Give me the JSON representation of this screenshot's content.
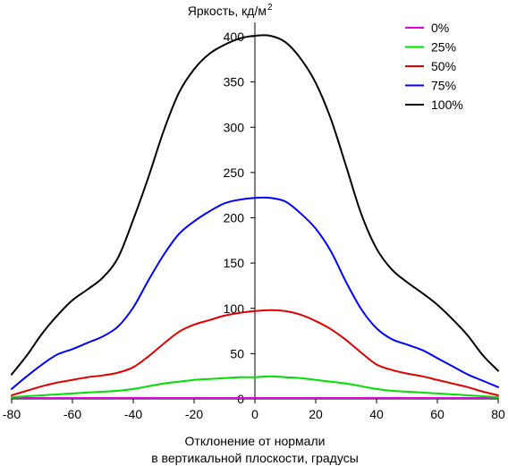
{
  "chart_data": {
    "type": "line",
    "ylabel": "Яркость, кд/м",
    "ylabel_sup": "2",
    "xlabel_line1": "Отклонение от нормали",
    "xlabel_line2": "в вертикальной плоскости, градусы",
    "xlim": [
      -80,
      80
    ],
    "ylim": [
      0,
      420
    ],
    "xticks": [
      -80,
      -60,
      -40,
      -20,
      0,
      20,
      40,
      60,
      80
    ],
    "yticks": [
      0,
      50,
      100,
      150,
      200,
      250,
      300,
      350,
      400
    ],
    "legend_position": "top-right",
    "x": [
      -80,
      -75,
      -70,
      -65,
      -60,
      -55,
      -50,
      -45,
      -40,
      -35,
      -30,
      -25,
      -20,
      -15,
      -10,
      -5,
      0,
      5,
      10,
      15,
      20,
      25,
      30,
      35,
      40,
      45,
      50,
      55,
      60,
      65,
      70,
      75,
      80
    ],
    "series": [
      {
        "name": "0%",
        "color": "#e000e0",
        "values": [
          1,
          1,
          1,
          1,
          1,
          1,
          1,
          1,
          1,
          1,
          1,
          1,
          1,
          1,
          1,
          1,
          1,
          1,
          1,
          1,
          1,
          1,
          1,
          1,
          1,
          1,
          1,
          1,
          1,
          1,
          1,
          1,
          1
        ]
      },
      {
        "name": "25%",
        "color": "#00e000",
        "values": [
          2,
          3,
          4,
          5,
          6,
          7,
          8,
          9,
          11,
          14,
          17,
          19,
          21,
          22,
          23,
          24,
          24,
          25,
          24,
          23,
          21,
          19,
          17,
          14,
          11,
          9,
          8,
          7,
          6,
          5,
          4,
          3,
          2
        ]
      },
      {
        "name": "50%",
        "color": "#e00000",
        "values": [
          4,
          9,
          14,
          18,
          21,
          24,
          26,
          29,
          35,
          47,
          61,
          74,
          82,
          87,
          92,
          95,
          97,
          98,
          97,
          93,
          86,
          77,
          65,
          51,
          38,
          32,
          28,
          25,
          21,
          17,
          13,
          8,
          4
        ]
      },
      {
        "name": "75%",
        "color": "#0000ff",
        "values": [
          11,
          25,
          38,
          49,
          55,
          62,
          69,
          80,
          101,
          131,
          159,
          182,
          196,
          207,
          216,
          220,
          222,
          222,
          218,
          205,
          188,
          163,
          129,
          99,
          78,
          66,
          60,
          54,
          45,
          36,
          27,
          20,
          13
        ]
      },
      {
        "name": "100%",
        "color": "#000000",
        "values": [
          27,
          48,
          72,
          92,
          109,
          121,
          134,
          156,
          198,
          245,
          296,
          338,
          364,
          381,
          391,
          398,
          401,
          401,
          394,
          376,
          349,
          309,
          257,
          204,
          166,
          143,
          129,
          117,
          104,
          88,
          70,
          48,
          31
        ]
      }
    ]
  }
}
